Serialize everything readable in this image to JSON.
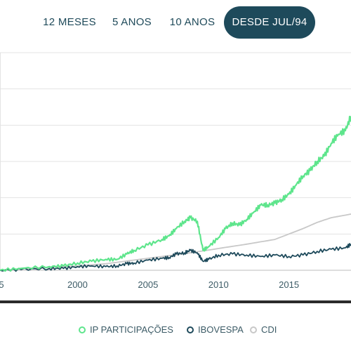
{
  "tabs": [
    {
      "label": "12 MESES",
      "active": false
    },
    {
      "label": "5 ANOS",
      "active": false
    },
    {
      "label": "10 ANOS",
      "active": false
    },
    {
      "label": "DESDE JUL/94",
      "active": true
    }
  ],
  "colors": {
    "ip": "#5ee58c",
    "ibovespa": "#1e4a5b",
    "cdi": "#c8c8c8",
    "grid": "#e3e3e3",
    "axis": "#2b2b2b",
    "tab_active": "#1e4a5b"
  },
  "chart_data": {
    "type": "line",
    "title": "",
    "xlabel": "",
    "ylabel": "",
    "x_ticks": [
      "5",
      "2000",
      "2005",
      "2010",
      "2015"
    ],
    "xlim": [
      1994.5,
      2019.4
    ],
    "ylim": [
      0,
      6
    ],
    "grid": true,
    "legend": "bottom",
    "series": [
      {
        "name": "IP PARTICIPAÇÕES",
        "color": "#5ee58c",
        "x": [
          1994.5,
          1996,
          1998,
          1999,
          2000,
          2001,
          2002,
          2002.8,
          2003.5,
          2004,
          2005,
          2006,
          2006.5,
          2007,
          2007.6,
          2008,
          2008.5,
          2008.9,
          2009.3,
          2010,
          2010.5,
          2011,
          2011.5,
          2012,
          2012.5,
          2013,
          2013.5,
          2014,
          2014.5,
          2015,
          2015.5,
          2016,
          2016.5,
          2017,
          2017.5,
          2018,
          2018.5,
          2019,
          2019.4
        ],
        "y": [
          0,
          0.05,
          0.1,
          0.12,
          0.2,
          0.25,
          0.3,
          0.3,
          0.45,
          0.55,
          0.7,
          0.85,
          0.95,
          1.15,
          1.35,
          1.45,
          1.35,
          0.55,
          0.65,
          0.9,
          1.15,
          1.3,
          1.25,
          1.4,
          1.6,
          1.8,
          1.8,
          1.85,
          1.95,
          2.1,
          2.35,
          2.6,
          2.75,
          3.0,
          3.15,
          3.5,
          3.75,
          3.85,
          4.25
        ]
      },
      {
        "name": "IBOVESPA",
        "color": "#1e4a5b",
        "x": [
          1994.5,
          1996,
          1998,
          1999,
          2000,
          2001,
          2002,
          2002.8,
          2003.5,
          2004,
          2005,
          2006,
          2006.5,
          2007,
          2007.6,
          2008,
          2008.5,
          2008.9,
          2009.3,
          2010,
          2011,
          2012,
          2013,
          2014,
          2015,
          2016,
          2017,
          2018,
          2019,
          2019.4
        ],
        "y": [
          0,
          0.02,
          0.05,
          0.05,
          0.1,
          0.12,
          0.1,
          0.12,
          0.18,
          0.2,
          0.28,
          0.33,
          0.35,
          0.45,
          0.48,
          0.55,
          0.48,
          0.25,
          0.3,
          0.42,
          0.45,
          0.42,
          0.38,
          0.42,
          0.38,
          0.42,
          0.52,
          0.58,
          0.62,
          0.72
        ]
      },
      {
        "name": "CDI",
        "color": "#c8c8c8",
        "x": [
          1994.5,
          1996,
          1998,
          2000,
          2002,
          2004,
          2006,
          2008,
          2010,
          2012,
          2014,
          2016,
          2017,
          2018,
          2019,
          2019.4
        ],
        "y": [
          0,
          0.04,
          0.08,
          0.12,
          0.18,
          0.28,
          0.38,
          0.48,
          0.6,
          0.72,
          0.85,
          1.15,
          1.32,
          1.45,
          1.52,
          1.55
        ]
      }
    ]
  }
}
